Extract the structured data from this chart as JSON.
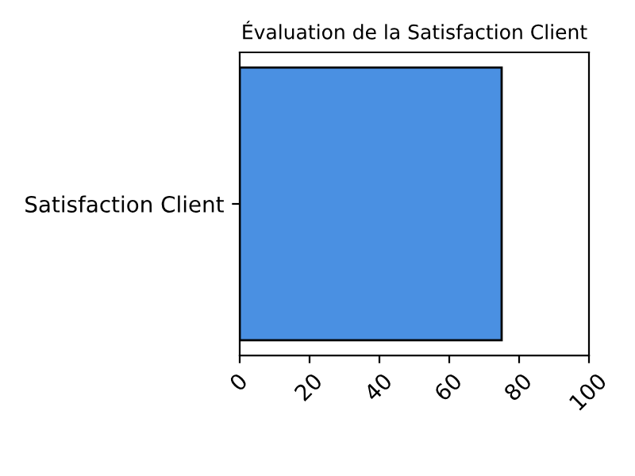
{
  "chart_data": {
    "type": "bar",
    "orientation": "horizontal",
    "title": "Évaluation de la Satisfaction Client",
    "categories": [
      "Satisfaction Client"
    ],
    "series": [
      {
        "color": "#4a90e2",
        "values": [
          75
        ]
      }
    ],
    "xlim": [
      0,
      100
    ],
    "xticks": [
      0,
      20,
      40,
      60,
      80,
      100
    ],
    "grid": false,
    "legend": false
  }
}
